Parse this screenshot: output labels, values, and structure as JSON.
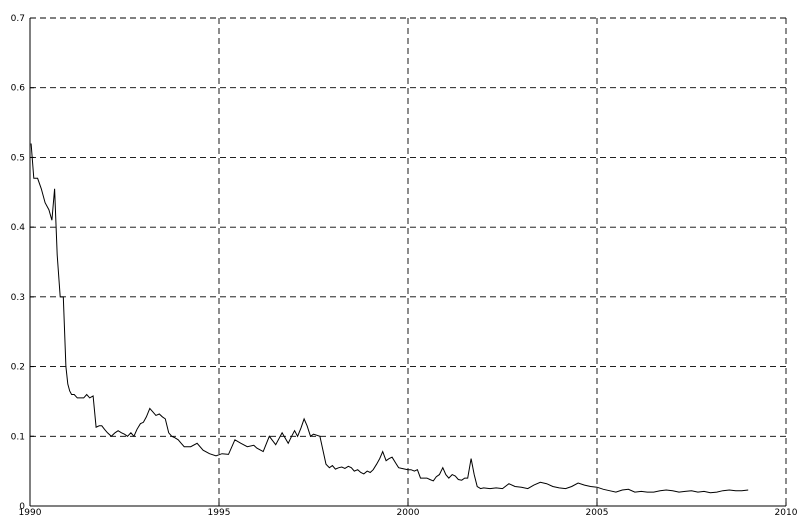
{
  "chart_data": {
    "type": "line",
    "title": "",
    "xlabel": "",
    "ylabel": "",
    "xlim": [
      1990,
      2010
    ],
    "ylim": [
      0,
      0.7
    ],
    "grid": true,
    "x_ticks": [
      1990,
      1995,
      2000,
      2005,
      2010
    ],
    "x_tick_labels": [
      "1990",
      "1995",
      "2000",
      "2005",
      "2010"
    ],
    "y_ticks": [
      0,
      0.1,
      0.2,
      0.3,
      0.4,
      0.5,
      0.6,
      0.7
    ],
    "y_tick_labels": [
      "0",
      "0.1",
      "0.2",
      "0.3",
      "0.4",
      "0.5",
      "0.6",
      "0.7"
    ],
    "series": [
      {
        "x": [
          1990.03,
          1990.1,
          1990.2,
          1990.3,
          1990.4,
          1990.5,
          1990.58,
          1990.65,
          1990.72,
          1990.8,
          1990.88,
          1990.95,
          1991.0,
          1991.05,
          1991.1,
          1991.17,
          1991.25,
          1991.33,
          1991.42,
          1991.5,
          1991.58,
          1991.67,
          1991.75,
          1991.83,
          1991.9,
          1991.97,
          1992.05,
          1992.15,
          1992.25,
          1992.33,
          1992.42,
          1992.5,
          1992.58,
          1992.67,
          1992.75,
          1992.83,
          1992.92,
          1993.0,
          1993.08,
          1993.17,
          1993.25,
          1993.33,
          1993.42,
          1993.5,
          1993.58,
          1993.67,
          1993.75,
          1993.83,
          1993.92,
          1994.0,
          1994.08,
          1994.17,
          1994.25,
          1994.42,
          1994.58,
          1994.75,
          1994.92,
          1995.08,
          1995.25,
          1995.42,
          1995.58,
          1995.75,
          1995.92,
          1996.0,
          1996.17,
          1996.33,
          1996.5,
          1996.67,
          1996.83,
          1996.92,
          1997.0,
          1997.08,
          1997.17,
          1997.25,
          1997.33,
          1997.42,
          1997.5,
          1997.67,
          1997.83,
          1997.92,
          1998.0,
          1998.08,
          1998.17,
          1998.25,
          1998.33,
          1998.42,
          1998.5,
          1998.58,
          1998.67,
          1998.75,
          1998.83,
          1998.92,
          1999.0,
          1999.08,
          1999.17,
          1999.25,
          1999.33,
          1999.42,
          1999.5,
          1999.58,
          1999.67,
          1999.75,
          1999.83,
          1999.92,
          2000.0,
          2000.08,
          2000.17,
          2000.25,
          2000.33,
          2000.42,
          2000.5,
          2000.58,
          2000.67,
          2000.75,
          2000.83,
          2000.92,
          2001.0,
          2001.08,
          2001.17,
          2001.25,
          2001.33,
          2001.42,
          2001.5,
          2001.58,
          2001.67,
          2001.75,
          2001.83,
          2001.92,
          2002.0,
          2002.17,
          2002.33,
          2002.5,
          2002.67,
          2002.83,
          2003.0,
          2003.17,
          2003.33,
          2003.5,
          2003.67,
          2003.83,
          2004.0,
          2004.17,
          2004.33,
          2004.5,
          2004.67,
          2004.83,
          2005.0,
          2005.17,
          2005.33,
          2005.5,
          2005.67,
          2005.83,
          2006.0,
          2006.17,
          2006.33,
          2006.5,
          2006.67,
          2006.83,
          2007.0,
          2007.17,
          2007.33,
          2007.5,
          2007.67,
          2007.83,
          2008.0,
          2008.17,
          2008.33,
          2008.5,
          2008.67,
          2008.83,
          2009.0
        ],
        "values": [
          0.52,
          0.47,
          0.47,
          0.455,
          0.435,
          0.425,
          0.41,
          0.455,
          0.36,
          0.3,
          0.3,
          0.2,
          0.175,
          0.165,
          0.16,
          0.16,
          0.155,
          0.155,
          0.155,
          0.16,
          0.155,
          0.158,
          0.113,
          0.115,
          0.115,
          0.11,
          0.105,
          0.1,
          0.105,
          0.108,
          0.105,
          0.103,
          0.1,
          0.105,
          0.1,
          0.11,
          0.118,
          0.12,
          0.128,
          0.14,
          0.135,
          0.13,
          0.132,
          0.128,
          0.125,
          0.105,
          0.1,
          0.098,
          0.095,
          0.09,
          0.085,
          0.085,
          0.085,
          0.09,
          0.08,
          0.075,
          0.072,
          0.075,
          0.074,
          0.095,
          0.09,
          0.085,
          0.087,
          0.083,
          0.078,
          0.1,
          0.088,
          0.105,
          0.09,
          0.1,
          0.108,
          0.1,
          0.112,
          0.125,
          0.115,
          0.1,
          0.103,
          0.1,
          0.06,
          0.055,
          0.058,
          0.053,
          0.055,
          0.056,
          0.054,
          0.057,
          0.055,
          0.05,
          0.052,
          0.048,
          0.046,
          0.05,
          0.048,
          0.052,
          0.06,
          0.068,
          0.078,
          0.065,
          0.068,
          0.07,
          0.062,
          0.055,
          0.054,
          0.053,
          0.052,
          0.052,
          0.05,
          0.052,
          0.04,
          0.04,
          0.04,
          0.038,
          0.036,
          0.042,
          0.045,
          0.055,
          0.045,
          0.04,
          0.045,
          0.043,
          0.038,
          0.037,
          0.04,
          0.04,
          0.068,
          0.045,
          0.028,
          0.025,
          0.026,
          0.025,
          0.026,
          0.025,
          0.032,
          0.028,
          0.027,
          0.025,
          0.03,
          0.034,
          0.032,
          0.028,
          0.026,
          0.025,
          0.028,
          0.033,
          0.03,
          0.028,
          0.027,
          0.024,
          0.022,
          0.02,
          0.023,
          0.024,
          0.02,
          0.021,
          0.02,
          0.02,
          0.022,
          0.023,
          0.022,
          0.02,
          0.021,
          0.022,
          0.02,
          0.021,
          0.019,
          0.02,
          0.022,
          0.023,
          0.022,
          0.022,
          0.023
        ]
      }
    ]
  }
}
